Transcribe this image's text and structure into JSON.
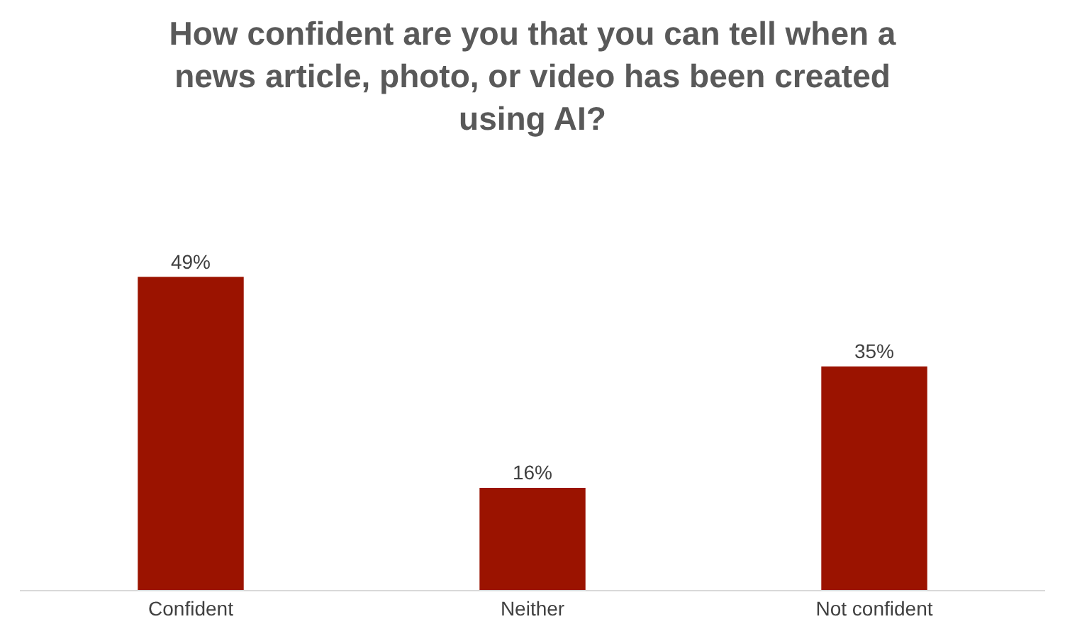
{
  "chart_data": {
    "type": "bar",
    "title": "How confident are you that you can tell when a\nnews article, photo, or video has been created\nusing AI?",
    "categories": [
      "Confident",
      "Neither",
      "Not confident"
    ],
    "values": [
      49,
      16,
      35
    ],
    "value_labels": [
      "49%",
      "16%",
      "35%"
    ],
    "color": "#9b1300",
    "grid": false,
    "legend": false
  }
}
